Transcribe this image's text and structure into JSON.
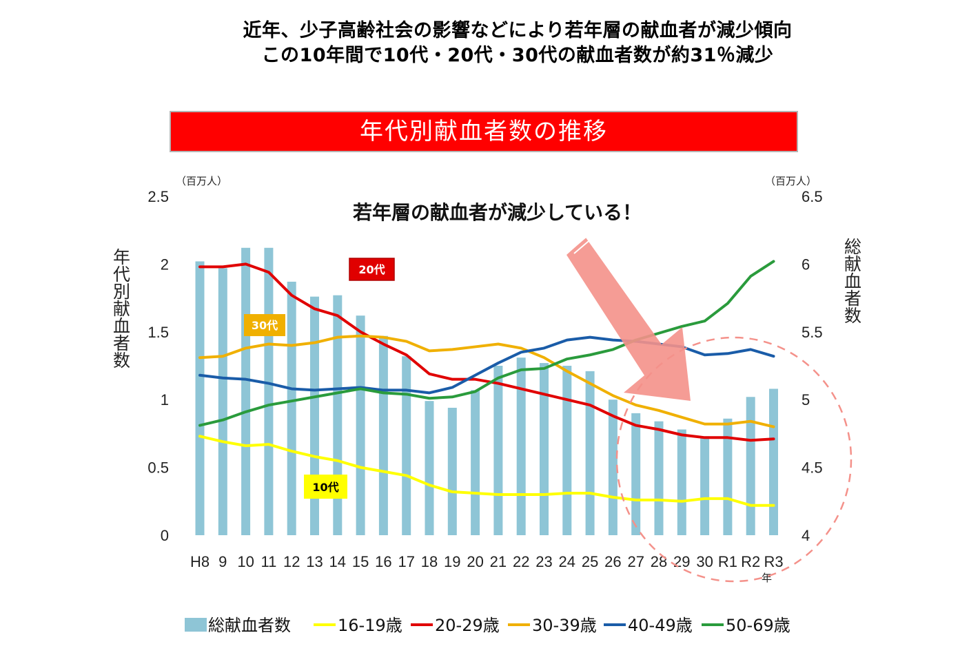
{
  "header": {
    "line1": "近年、少子高齢社会の影響などにより若年層の献血者が減少傾向",
    "line2": "この10年間で10代・20代・30代の献血者数が約31％減少"
  },
  "banner": {
    "title": "年代別献血者数の推移",
    "color": "#ff0000"
  },
  "callout": {
    "text": "若年層の献血者が減少している！",
    "arrow_color": "#f4918a",
    "circle_color": "#f4918a"
  },
  "chart_data": {
    "type": "bar",
    "title": "年代別献血者数の推移",
    "x_unit": "年",
    "categories": [
      "H8",
      "9",
      "10",
      "11",
      "12",
      "13",
      "14",
      "15",
      "16",
      "17",
      "18",
      "19",
      "20",
      "21",
      "22",
      "23",
      "24",
      "25",
      "26",
      "27",
      "28",
      "29",
      "30",
      "R1",
      "R2",
      "R3"
    ],
    "left_axis": {
      "label": "年代別献血者数",
      "unit": "（百万人）",
      "ylim": [
        0,
        2.5
      ],
      "ticks": [
        "0",
        "0.5",
        "1",
        "1.5",
        "2",
        "2.5"
      ]
    },
    "right_axis": {
      "label": "総献血者数",
      "unit": "（百万人）",
      "ylim": [
        4,
        6.5
      ],
      "ticks": [
        "4",
        "4.5",
        "5",
        "5.5",
        "6",
        "6.5"
      ]
    },
    "bar_series": {
      "name": "総献血者数",
      "axis": "right",
      "color": "#8ec5d6",
      "values": [
        6.02,
        5.97,
        6.12,
        6.12,
        5.87,
        5.76,
        5.77,
        5.62,
        5.47,
        5.32,
        4.99,
        4.94,
        5.07,
        5.25,
        5.31,
        5.27,
        5.25,
        5.21,
        5.0,
        4.9,
        4.84,
        4.78,
        4.73,
        4.86,
        5.02,
        5.08
      ]
    },
    "series": [
      {
        "name": "16-19歳",
        "axis": "left",
        "color": "#ffff00",
        "values": [
          0.73,
          0.69,
          0.66,
          0.67,
          0.62,
          0.58,
          0.55,
          0.5,
          0.47,
          0.44,
          0.37,
          0.32,
          0.31,
          0.3,
          0.3,
          0.3,
          0.31,
          0.31,
          0.28,
          0.26,
          0.26,
          0.25,
          0.27,
          0.27,
          0.22,
          0.22
        ]
      },
      {
        "name": "20-29歳",
        "axis": "left",
        "color": "#e00000",
        "values": [
          1.98,
          1.98,
          2.0,
          1.94,
          1.77,
          1.67,
          1.62,
          1.5,
          1.41,
          1.33,
          1.19,
          1.15,
          1.15,
          1.12,
          1.08,
          1.04,
          1.0,
          0.96,
          0.88,
          0.81,
          0.78,
          0.74,
          0.72,
          0.72,
          0.7,
          0.71
        ]
      },
      {
        "name": "30-39歳",
        "axis": "left",
        "color": "#f0b000",
        "values": [
          1.31,
          1.32,
          1.38,
          1.41,
          1.4,
          1.42,
          1.46,
          1.47,
          1.46,
          1.43,
          1.36,
          1.37,
          1.39,
          1.41,
          1.38,
          1.31,
          1.21,
          1.12,
          1.03,
          0.96,
          0.92,
          0.87,
          0.82,
          0.82,
          0.84,
          0.8
        ]
      },
      {
        "name": "40-49歳",
        "axis": "left",
        "color": "#1a5ca8",
        "values": [
          1.18,
          1.16,
          1.15,
          1.12,
          1.08,
          1.07,
          1.08,
          1.09,
          1.07,
          1.07,
          1.05,
          1.09,
          1.18,
          1.27,
          1.35,
          1.38,
          1.44,
          1.46,
          1.44,
          1.43,
          1.41,
          1.39,
          1.33,
          1.34,
          1.37,
          1.32
        ]
      },
      {
        "name": "50-69歳",
        "axis": "left",
        "color": "#2a9b3c",
        "values": [
          0.81,
          0.85,
          0.91,
          0.96,
          0.99,
          1.02,
          1.05,
          1.08,
          1.05,
          1.04,
          1.01,
          1.02,
          1.06,
          1.16,
          1.22,
          1.23,
          1.3,
          1.33,
          1.37,
          1.44,
          1.49,
          1.54,
          1.58,
          1.71,
          1.91,
          2.02
        ]
      }
    ],
    "annotations": [
      {
        "text": "20代",
        "bg": "#e00000",
        "fg": "#ffffff"
      },
      {
        "text": "30代",
        "bg": "#f0b000",
        "fg": "#ffffff"
      },
      {
        "text": "10代",
        "bg": "#ffff00",
        "fg": "#000000"
      }
    ],
    "legend_position": "bottom",
    "grid": false
  }
}
